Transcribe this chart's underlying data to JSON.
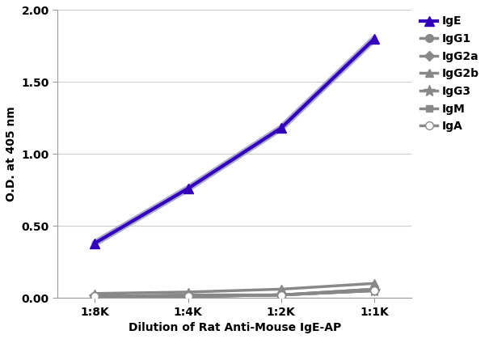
{
  "x_labels": [
    "1:8K",
    "1:4K",
    "1:2K",
    "1:1K"
  ],
  "x_values": [
    0,
    1,
    2,
    3
  ],
  "series": {
    "IgE": [
      0.38,
      0.76,
      1.18,
      1.8
    ],
    "IgG1": [
      0.01,
      0.01,
      0.02,
      0.06
    ],
    "IgG2a": [
      0.01,
      0.01,
      0.02,
      0.05
    ],
    "IgG2b": [
      0.03,
      0.04,
      0.06,
      0.1
    ],
    "IgG3": [
      0.01,
      0.02,
      0.02,
      0.05
    ],
    "IgM": [
      0.01,
      0.01,
      0.02,
      0.06
    ],
    "IgA": [
      0.01,
      0.01,
      0.02,
      0.05
    ]
  },
  "colors": {
    "IgE": "#3300bb",
    "IgG1": "#888888",
    "IgG2a": "#888888",
    "IgG2b": "#888888",
    "IgG3": "#888888",
    "IgM": "#888888",
    "IgA": "#888888"
  },
  "markers": {
    "IgE": "^",
    "IgG1": "o",
    "IgG2a": "D",
    "IgG2b": "^",
    "IgG3": "*",
    "IgM": "s",
    "IgA": "o"
  },
  "markerfacecolors": {
    "IgE": "#3300bb",
    "IgG1": "#888888",
    "IgG2a": "#888888",
    "IgG2b": "#888888",
    "IgG3": "#888888",
    "IgM": "#888888",
    "IgA": "white"
  },
  "linewidths": {
    "IgE": 3.0,
    "IgG1": 2.5,
    "IgG2a": 2.5,
    "IgG2b": 2.5,
    "IgG3": 2.5,
    "IgM": 2.5,
    "IgA": 2.5
  },
  "markersizes": {
    "IgE": 8,
    "IgG1": 7,
    "IgG2a": 6,
    "IgG2b": 7,
    "IgG3": 10,
    "IgM": 6,
    "IgA": 7
  },
  "xlabel": "Dilution of Rat Anti-Mouse IgE-AP",
  "ylabel": "O.D. at 405 nm",
  "ylim": [
    0.0,
    2.0
  ],
  "yticks": [
    0.0,
    0.5,
    1.0,
    1.5,
    2.0
  ],
  "background_color": "#ffffff",
  "grid_color": "#cccccc"
}
